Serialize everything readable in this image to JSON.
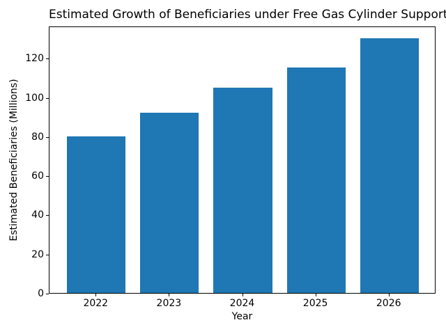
{
  "figure": {
    "background": "#ffffff",
    "text_color": "#000000"
  },
  "chart_data": {
    "type": "bar",
    "title": "Estimated Growth of Beneficiaries under Free Gas Cylinder Support",
    "xlabel": "Year",
    "ylabel": "Estimated Beneficiaries (Millions)",
    "categories": [
      "2022",
      "2023",
      "2024",
      "2025",
      "2026"
    ],
    "values": [
      80,
      92,
      105,
      115,
      130
    ],
    "yticks": [
      0,
      20,
      40,
      60,
      80,
      100,
      120
    ],
    "ylim": [
      0,
      136.5
    ],
    "xlim": [
      -0.64,
      4.64
    ],
    "bar_width": 0.8,
    "bar_color": "#1f77b4",
    "axis_color": "#000000",
    "grid": false,
    "legend": "none"
  }
}
